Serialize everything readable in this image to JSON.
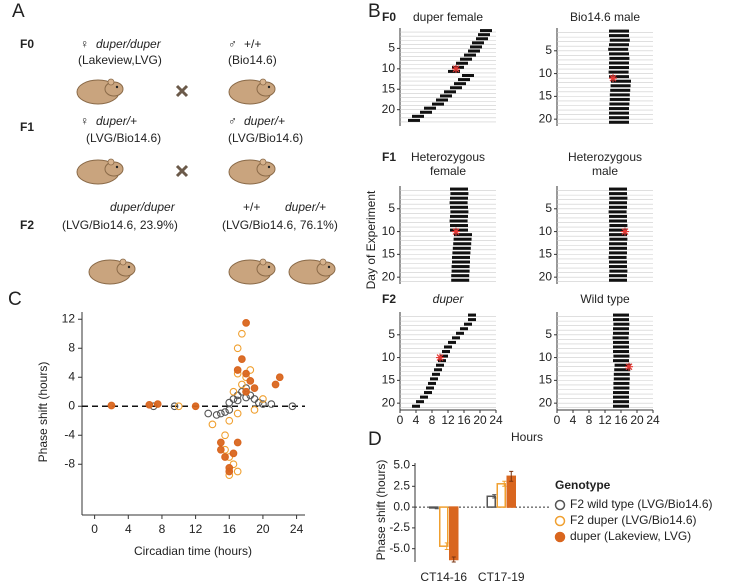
{
  "panel_labels": [
    "A",
    "B",
    "C",
    "D"
  ],
  "diagram": {
    "f0": {
      "label": "F0",
      "female_symbol": "♀",
      "female_genotype": "duper/duper",
      "female_strain": "(Lakeview,LVG)",
      "male_symbol": "♂",
      "male_genotype": "+/+",
      "male_strain": "(Bio14.6)"
    },
    "f1": {
      "label": "F1",
      "female_symbol": "♀",
      "female_genotype": "duper/+",
      "female_strain": "(LVG/Bio14.6)",
      "male_symbol": "♂",
      "male_genotype": "duper/+",
      "male_strain": "(LVG/Bio14.6)"
    },
    "f2": {
      "label": "F2",
      "left_genotype": "duper/duper",
      "left_strain": "(LVG/Bio14.6, 23.9%)",
      "right_genotype_1": "+/+",
      "right_genotype_2": "duper/+",
      "right_strain": "(LVG/Bio14.6, 76.1%)"
    }
  },
  "actograms": {
    "y_label": "Day of Experiment",
    "x_label": "Hours",
    "xlim": [
      0,
      24
    ],
    "xticks": [
      0,
      4,
      8,
      12,
      16,
      20,
      24
    ],
    "bar_color": "#111",
    "pulse_color": "#e53935",
    "rows": [
      {
        "label": "F0",
        "plots": [
          {
            "title_lines": [
              "duper female"
            ],
            "ylim": [
              0,
              24
            ],
            "yticks": [
              5,
              10,
              15,
              20
            ],
            "activity_duration": 3,
            "pulse": {
              "day": 10,
              "hour": 14
            },
            "onsets": [
              20,
              19.5,
              19,
              18,
              17.5,
              17,
              16,
              15,
              14,
              13,
              12,
              15.5,
              14.5,
              13.5,
              12.5,
              11,
              10,
              9,
              8,
              6,
              5,
              3,
              2
            ]
          },
          {
            "title_lines": [
              "Bio14.6 male"
            ],
            "ylim": [
              0,
              21.5
            ],
            "yticks": [
              5,
              10,
              15,
              20
            ],
            "activity_duration": 5,
            "pulse": {
              "day": 11,
              "hour": 14
            },
            "onsets": [
              13,
              13,
              13.2,
              13,
              12.8,
              13,
              13.1,
              13,
              13,
              12.9,
              13,
              13.5,
              13.4,
              13.3,
              13.2,
              13.2,
              13.1,
              13,
              13,
              13,
              13
            ]
          }
        ]
      },
      {
        "label": "F1",
        "plots": [
          {
            "title_lines": [
              "Heterozygous",
              "female"
            ],
            "ylim": [
              0,
              21.5
            ],
            "yticks": [
              5,
              10,
              15,
              20
            ],
            "activity_duration": 4.5,
            "pulse": {
              "day": 10,
              "hour": 14
            },
            "onsets": [
              12.5,
              12.6,
              12.5,
              12.4,
              12.5,
              12.6,
              12.5,
              12.4,
              12.5,
              12.5,
              13.5,
              13.4,
              13.3,
              13.2,
              13.1,
              13,
              13,
              12.9,
              12.9,
              12.8,
              12.8
            ]
          },
          {
            "title_lines": [
              "Heterozygous",
              "male"
            ],
            "ylim": [
              0,
              21.5
            ],
            "yticks": [
              5,
              10,
              15,
              20
            ],
            "activity_duration": 4.5,
            "pulse": {
              "day": 10,
              "hour": 17
            },
            "onsets": [
              13,
              13,
              13.1,
              13,
              13,
              12.9,
              13,
              13,
              13.1,
              13,
              13,
              13.1,
              13,
              13,
              13,
              12.9,
              13,
              13,
              13.1,
              13,
              13
            ]
          }
        ]
      },
      {
        "label": "F2",
        "plots": [
          {
            "title_lines": [
              "duper"
            ],
            "ylim": [
              0,
              21.5
            ],
            "yticks": [
              5,
              10,
              15,
              20
            ],
            "activity_duration": 2,
            "pulse": {
              "day": 10,
              "hour": 10
            },
            "onsets": [
              17,
              17,
              16,
              15,
              14,
              13,
              12,
              11,
              10.5,
              10,
              9.5,
              9,
              8.5,
              8,
              7.5,
              7,
              6.5,
              6,
              5,
              4,
              3
            ]
          },
          {
            "title_lines": [
              "Wild type"
            ],
            "ylim": [
              0,
              21.5
            ],
            "yticks": [
              5,
              10,
              15,
              20
            ],
            "activity_duration": 4,
            "pulse": {
              "day": 12,
              "hour": 18
            },
            "onsets": [
              14,
              14,
              14.1,
              14,
              14,
              13.9,
              14,
              14,
              14,
              14.1,
              14,
              14.4,
              14.3,
              14.2,
              14.2,
              14.1,
              14.1,
              14,
              14,
              14,
              14
            ]
          }
        ]
      }
    ]
  },
  "chart_data": [
    {
      "type": "scatter",
      "x_label": "Circadian time (hours)",
      "y_label": "Phase shift (hours)",
      "xlim": [
        -1.5,
        25
      ],
      "xticks": [
        0,
        4,
        8,
        12,
        16,
        20,
        24
      ],
      "ylim": [
        -15,
        13
      ],
      "yticks": [
        -8,
        -4,
        0,
        4,
        8,
        12
      ],
      "hline": 0,
      "series": [
        {
          "name": "F2 wild type (LVG/Bio14.6)",
          "color": "#555555",
          "filled": false,
          "x": [
            15,
            14.5,
            15.5,
            16,
            16.5,
            17,
            17.5,
            18,
            18.5,
            19,
            19.5,
            20,
            13.5,
            16,
            17,
            18,
            7,
            9.5,
            23.5,
            21
          ],
          "values": [
            -1,
            -1.2,
            -0.8,
            0.5,
            1,
            1.5,
            2,
            2.5,
            1.5,
            1,
            0.5,
            0.3,
            -1,
            -0.5,
            0.8,
            1.2,
            0,
            0,
            0,
            0.3
          ]
        },
        {
          "name": "F2 duper (LVG/Bio14.6)",
          "color": "#f0a030",
          "filled": false,
          "x": [
            17,
            16,
            15.5,
            16,
            16.5,
            17,
            16,
            15.5,
            17.5,
            18,
            18.5,
            17,
            17.5,
            16.5,
            19,
            20,
            14,
            10,
            18,
            17
          ],
          "values": [
            -1,
            -2,
            -6,
            -7,
            -8,
            -9,
            -9.5,
            -4,
            3,
            4,
            5,
            8,
            10,
            2,
            -0.5,
            1,
            -2.5,
            0,
            2,
            4.5
          ]
        },
        {
          "name": "duper (Lakeview, LVG)",
          "color": "#d9661f",
          "filled": true,
          "x": [
            2,
            6.5,
            7.5,
            12,
            15,
            15.5,
            16,
            16.5,
            15,
            18,
            17.5,
            18,
            18.5,
            17,
            22,
            21.5,
            19,
            18,
            16,
            17
          ],
          "values": [
            0.1,
            0.2,
            0.3,
            0,
            -6,
            -7,
            -8.5,
            -6.5,
            -5,
            11.5,
            6.5,
            4.5,
            3.5,
            5,
            4,
            3,
            2.5,
            2,
            -9,
            -5
          ]
        }
      ]
    },
    {
      "type": "bar",
      "y_label": "Phase shift (hours)",
      "legend_title": "Genotype",
      "categories": [
        "CT14-16",
        "CT17-19"
      ],
      "ylim": [
        -6.6,
        5.3
      ],
      "yticks": [
        {
          "value": -5,
          "label": "-5.0"
        },
        {
          "value": -2.5,
          "label": "-2.5"
        },
        {
          "value": 0,
          "label": "0.0"
        },
        {
          "value": 2.5,
          "label": "2.5"
        },
        {
          "value": 5,
          "label": "5.0"
        }
      ],
      "hline": 0,
      "series": [
        {
          "name": "F2 wild type (LVG/Bio14.6)",
          "color": "#555555",
          "filled": false,
          "values": [
            -0.1,
            1.3
          ],
          "errors": [
            0.1,
            0.2
          ]
        },
        {
          "name": "F2 duper (LVG/Bio14.6)",
          "color": "#f0a030",
          "filled": false,
          "values": [
            -4.7,
            2.8
          ],
          "errors": [
            0.4,
            0.3
          ]
        },
        {
          "name": "duper (Lakeview, LVG)",
          "color": "#d9661f",
          "filled": true,
          "values": [
            -6.3,
            3.7
          ],
          "errors": [
            0.3,
            0.6
          ]
        }
      ]
    }
  ]
}
